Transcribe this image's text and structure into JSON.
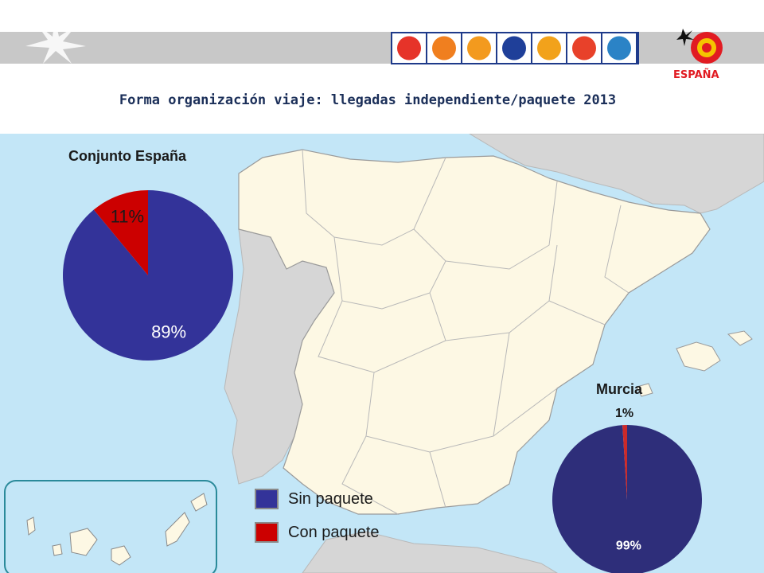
{
  "header": {
    "title": "Forma organización viaje: llegadas independiente/paquete 2013",
    "logo_text": "ESPAÑA",
    "sun_colors": [
      "#e63329",
      "#f07f1f",
      "#f39a1e",
      "#1f3f99",
      "#f2a21b",
      "#e8412a",
      "#2b83c6"
    ]
  },
  "legend": {
    "items": [
      {
        "label": "Sin paquete",
        "color": "#333399"
      },
      {
        "label": "Con paquete",
        "color": "#cc0000"
      }
    ]
  },
  "chart_data": [
    {
      "type": "pie",
      "title": "Conjunto España",
      "categories": [
        "Sin paquete",
        "Con paquete"
      ],
      "values": [
        89,
        11
      ],
      "labels": [
        "89%",
        "11%"
      ],
      "colors": [
        "#333399",
        "#cc0000"
      ]
    },
    {
      "type": "pie",
      "title": "Murcia",
      "categories": [
        "Sin paquete",
        "Con paquete"
      ],
      "values": [
        99,
        1
      ],
      "labels": [
        "99%",
        "1%"
      ],
      "colors": [
        "#2e2e7a",
        "#cc2a2a"
      ]
    }
  ],
  "colors": {
    "sea": "#c3e6f7",
    "spain": "#fdf8e4",
    "neighbors": "#d6d6d6",
    "borders": "#b8b8b8"
  }
}
